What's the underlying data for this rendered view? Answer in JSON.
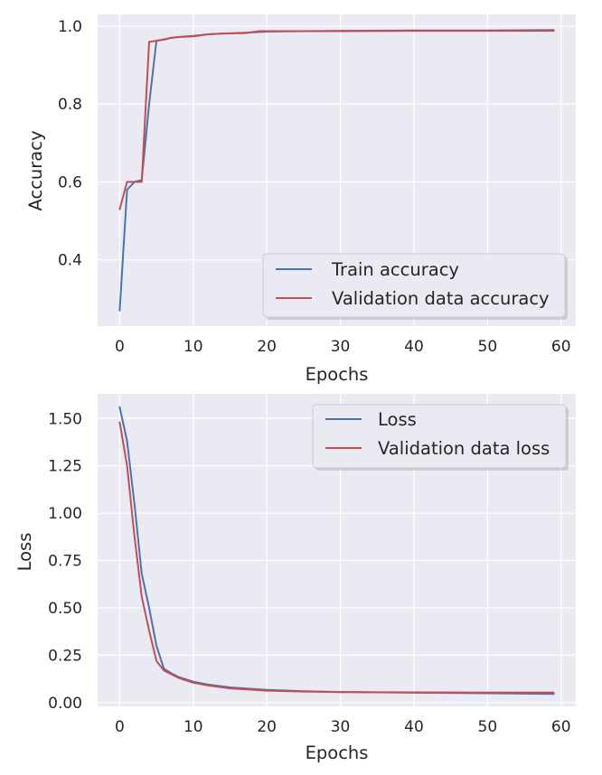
{
  "chart_data": [
    {
      "type": "line",
      "xlabel": "Epochs",
      "ylabel": "Accuracy",
      "xlim": [
        -3,
        62
      ],
      "ylim": [
        0.23,
        1.03
      ],
      "xticks": [
        0,
        10,
        20,
        30,
        40,
        50,
        60
      ],
      "xtick_labels": [
        "0",
        "10",
        "20",
        "30",
        "40",
        "50",
        "60"
      ],
      "yticks": [
        0.4,
        0.6,
        0.8,
        1.0
      ],
      "ytick_labels": [
        "0.4",
        "0.6",
        "0.8",
        "1.0"
      ],
      "grid": true,
      "legend_position": "lower-right",
      "series": [
        {
          "name": "Train accuracy",
          "color": "#4c72b0",
          "x": [
            0,
            1,
            2,
            3,
            4,
            5,
            6,
            7,
            8,
            10,
            12,
            14,
            17,
            20,
            25,
            30,
            40,
            50,
            59
          ],
          "y": [
            0.27,
            0.58,
            0.6,
            0.605,
            0.8,
            0.963,
            0.965,
            0.97,
            0.972,
            0.975,
            0.979,
            0.981,
            0.983,
            0.986,
            0.987,
            0.988,
            0.989,
            0.989,
            0.99
          ]
        },
        {
          "name": "Validation data accuracy",
          "color": "#c44e52",
          "x": [
            0,
            1,
            2,
            3,
            4,
            5,
            6,
            7,
            8,
            10,
            12,
            14,
            17,
            19,
            25,
            30,
            40,
            50,
            59
          ],
          "y": [
            0.53,
            0.6,
            0.6,
            0.6,
            0.96,
            0.962,
            0.966,
            0.97,
            0.972,
            0.974,
            0.979,
            0.981,
            0.982,
            0.987,
            0.987,
            0.987,
            0.988,
            0.988,
            0.988
          ]
        }
      ]
    },
    {
      "type": "line",
      "xlabel": "Epochs",
      "ylabel": "Loss",
      "xlim": [
        -3,
        62
      ],
      "ylim": [
        -0.02,
        1.63
      ],
      "xticks": [
        0,
        10,
        20,
        30,
        40,
        50,
        60
      ],
      "xtick_labels": [
        "0",
        "10",
        "20",
        "30",
        "40",
        "50",
        "60"
      ],
      "yticks": [
        0.0,
        0.25,
        0.5,
        0.75,
        1.0,
        1.25,
        1.5
      ],
      "ytick_labels": [
        "0.00",
        "0.25",
        "0.50",
        "0.75",
        "1.00",
        "1.25",
        "1.50"
      ],
      "grid": true,
      "legend_position": "upper-right",
      "series": [
        {
          "name": "Loss",
          "color": "#4c72b0",
          "x": [
            0,
            1,
            2,
            3,
            4,
            5,
            6,
            7,
            8,
            10,
            12,
            15,
            20,
            25,
            30,
            40,
            50,
            59
          ],
          "y": [
            1.56,
            1.38,
            1.05,
            0.68,
            0.5,
            0.3,
            0.18,
            0.155,
            0.135,
            0.11,
            0.095,
            0.08,
            0.067,
            0.06,
            0.056,
            0.052,
            0.049,
            0.046
          ]
        },
        {
          "name": "Validation data loss",
          "color": "#c44e52",
          "x": [
            0,
            1,
            2,
            3,
            4,
            5,
            6,
            7,
            8,
            10,
            12,
            15,
            20,
            25,
            30,
            40,
            50,
            59
          ],
          "y": [
            1.48,
            1.25,
            0.88,
            0.56,
            0.38,
            0.22,
            0.17,
            0.15,
            0.13,
            0.105,
            0.09,
            0.075,
            0.063,
            0.058,
            0.055,
            0.054,
            0.053,
            0.053
          ]
        }
      ]
    }
  ]
}
